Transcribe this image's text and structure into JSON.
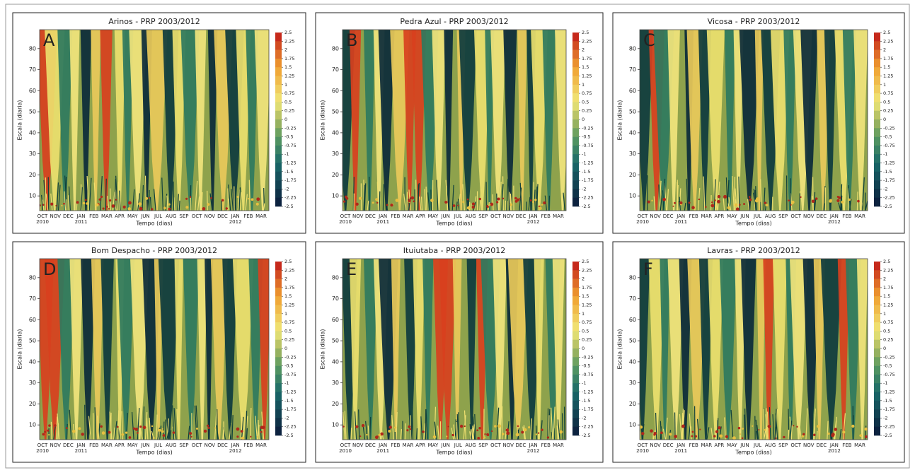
{
  "chart_data": [
    {
      "type": "heatmap",
      "title": "Arinos - PRP 2003/2012",
      "annotation": "A",
      "xlabel": "Tempo (dias)",
      "ylabel": "Escala (diaria)",
      "categories": [
        "OCT",
        "NOV",
        "DEC",
        "JAN",
        "FEB",
        "MAR",
        "APR",
        "MAY",
        "JUN",
        "JUL",
        "AUG",
        "SEP",
        "OCT",
        "NOV",
        "DEC",
        "JAN",
        "FEB",
        "MAR"
      ],
      "years": [
        "2010",
        null,
        null,
        "2011",
        null,
        null,
        null,
        null,
        null,
        null,
        null,
        null,
        null,
        null,
        null,
        "2012",
        null,
        null
      ],
      "ylim": [
        3,
        89
      ],
      "yticks": [
        10,
        20,
        30,
        40,
        50,
        60,
        70,
        80
      ],
      "clim": [
        -2.5,
        2.5
      ],
      "cbar_ticks": [
        2.5,
        2.25,
        2,
        1.75,
        1.5,
        1.25,
        1,
        0.75,
        0.5,
        0.25,
        0,
        -0.25,
        -0.5,
        -0.75,
        -1,
        -1.25,
        -1.5,
        -1.75,
        -2,
        -2.25,
        -2.5
      ]
    },
    {
      "type": "heatmap",
      "title": "Pedra Azul - PRP 2003/2012",
      "annotation": "B",
      "xlabel": "Tempo (dias)",
      "ylabel": "Escala (diaria)",
      "categories": [
        "OCT",
        "NOV",
        "DEC",
        "JAN",
        "FEB",
        "MAR",
        "APR",
        "MAY",
        "JUN",
        "JUL",
        "AUG",
        "SEP",
        "OCT",
        "NOV",
        "DEC",
        "JAN",
        "FEB",
        "MAR"
      ],
      "years": [
        "2010",
        null,
        null,
        "2011",
        null,
        null,
        null,
        null,
        null,
        null,
        null,
        null,
        null,
        null,
        null,
        "2012",
        null,
        null
      ],
      "ylim": [
        3,
        89
      ],
      "yticks": [
        10,
        20,
        30,
        40,
        50,
        60,
        70,
        80
      ],
      "clim": [
        -2.5,
        2.5
      ],
      "cbar_ticks": [
        2.5,
        2.25,
        2,
        1.75,
        1.5,
        1.25,
        1,
        0.75,
        0.5,
        0.25,
        0,
        -0.25,
        -0.5,
        -0.75,
        -1,
        -1.25,
        -1.5,
        -1.75,
        -2,
        -2.25,
        -2.5
      ]
    },
    {
      "type": "heatmap",
      "title": "Vicosa - PRP 2003/2012",
      "annotation": "C",
      "xlabel": "Tempo (dias)",
      "ylabel": "Escala (diaria)",
      "categories": [
        "OCT",
        "NOV",
        "DEC",
        "JAN",
        "FEB",
        "MAR",
        "APR",
        "MAY",
        "JUN",
        "JUL",
        "AUG",
        "SEP",
        "OCT",
        "NOV",
        "DEC",
        "JAN",
        "FEB",
        "MAR"
      ],
      "years": [
        "2010",
        null,
        null,
        "2011",
        null,
        null,
        null,
        null,
        null,
        null,
        null,
        null,
        null,
        null,
        null,
        "2012",
        null,
        null
      ],
      "ylim": [
        3,
        89
      ],
      "yticks": [
        10,
        20,
        30,
        40,
        50,
        60,
        70,
        80
      ],
      "clim": [
        -2.5,
        2.5
      ],
      "cbar_ticks": [
        2.5,
        2.25,
        2,
        1.75,
        1.5,
        1.25,
        1,
        0.75,
        0.5,
        0.25,
        0,
        -0.25,
        -0.5,
        -0.75,
        -1,
        -1.25,
        -1.5,
        -1.75,
        -2,
        -2.25,
        -2.5
      ]
    },
    {
      "type": "heatmap",
      "title": "Bom Despacho - PRP 2003/2012",
      "annotation": "D",
      "xlabel": "Tempo (dias)",
      "ylabel": "Escala (diaria)",
      "categories": [
        "OCT",
        "NOV",
        "DEC",
        "JAN",
        "FEB",
        "MAR",
        "APR",
        "MAY",
        "JUN",
        "JUL",
        "AUG",
        "SEP",
        "OCT",
        "NOV",
        "DEC",
        "JAN",
        "FEB",
        "MAR"
      ],
      "years": [
        "2010",
        null,
        null,
        "2011",
        null,
        null,
        null,
        null,
        null,
        null,
        null,
        null,
        null,
        null,
        null,
        "2012",
        null,
        null
      ],
      "ylim": [
        3,
        89
      ],
      "yticks": [
        10,
        20,
        30,
        40,
        50,
        60,
        70,
        80
      ],
      "clim": [
        -2.5,
        2.5
      ],
      "cbar_ticks": [
        2.5,
        2.25,
        2,
        1.75,
        1.5,
        1.25,
        1,
        0.75,
        0.5,
        0.25,
        0,
        -0.25,
        -0.5,
        -0.75,
        -1,
        -1.25,
        -1.5,
        -1.75,
        -2,
        -2.25,
        -2.5
      ]
    },
    {
      "type": "heatmap",
      "title": "Ituiutaba - PRP 2003/2012",
      "annotation": "E",
      "xlabel": "Tempo (dias)",
      "ylabel": "Escala (diaria)",
      "categories": [
        "OCT",
        "NOV",
        "DEC",
        "JAN",
        "FEB",
        "MAR",
        "APR",
        "MAY",
        "JUN",
        "JUL",
        "AUG",
        "SEP",
        "OCT",
        "NOV",
        "DEC",
        "JAN",
        "FEB",
        "MAR"
      ],
      "years": [
        "2010",
        null,
        null,
        "2011",
        null,
        null,
        null,
        null,
        null,
        null,
        null,
        null,
        null,
        null,
        null,
        "2012",
        null,
        null
      ],
      "ylim": [
        3,
        89
      ],
      "yticks": [
        10,
        20,
        30,
        40,
        50,
        60,
        70,
        80
      ],
      "clim": [
        -2.5,
        2.5
      ],
      "cbar_ticks": [
        2.5,
        2.25,
        2,
        1.75,
        1.5,
        1.25,
        1,
        0.75,
        0.5,
        0.25,
        0,
        -0.25,
        -0.5,
        -0.75,
        -1,
        -1.25,
        -1.5,
        -1.75,
        -2,
        -2.25,
        -2.5
      ]
    },
    {
      "type": "heatmap",
      "title": "Lavras - PRP 2003/2012",
      "annotation": "F",
      "xlabel": "Tempo (dias)",
      "ylabel": "Escala (diaria)",
      "categories": [
        "OCT",
        "NOV",
        "DEC",
        "JAN",
        "FEB",
        "MAR",
        "APR",
        "MAY",
        "JUN",
        "JUL",
        "AUG",
        "SEP",
        "OCT",
        "NOV",
        "DEC",
        "JAN",
        "FEB",
        "MAR"
      ],
      "years": [
        "2010",
        null,
        null,
        "2011",
        null,
        null,
        null,
        null,
        null,
        null,
        null,
        null,
        null,
        null,
        null,
        "2012",
        null,
        null
      ],
      "ylim": [
        3,
        89
      ],
      "yticks": [
        10,
        20,
        30,
        40,
        50,
        60,
        70,
        80
      ],
      "clim": [
        -2.5,
        2.5
      ],
      "cbar_ticks": [
        2.5,
        2.25,
        2,
        1.75,
        1.5,
        1.25,
        1,
        0.75,
        0.5,
        0.25,
        0,
        -0.25,
        -0.5,
        -0.75,
        -1,
        -1.25,
        -1.5,
        -1.75,
        -2,
        -2.25,
        -2.5
      ]
    }
  ]
}
